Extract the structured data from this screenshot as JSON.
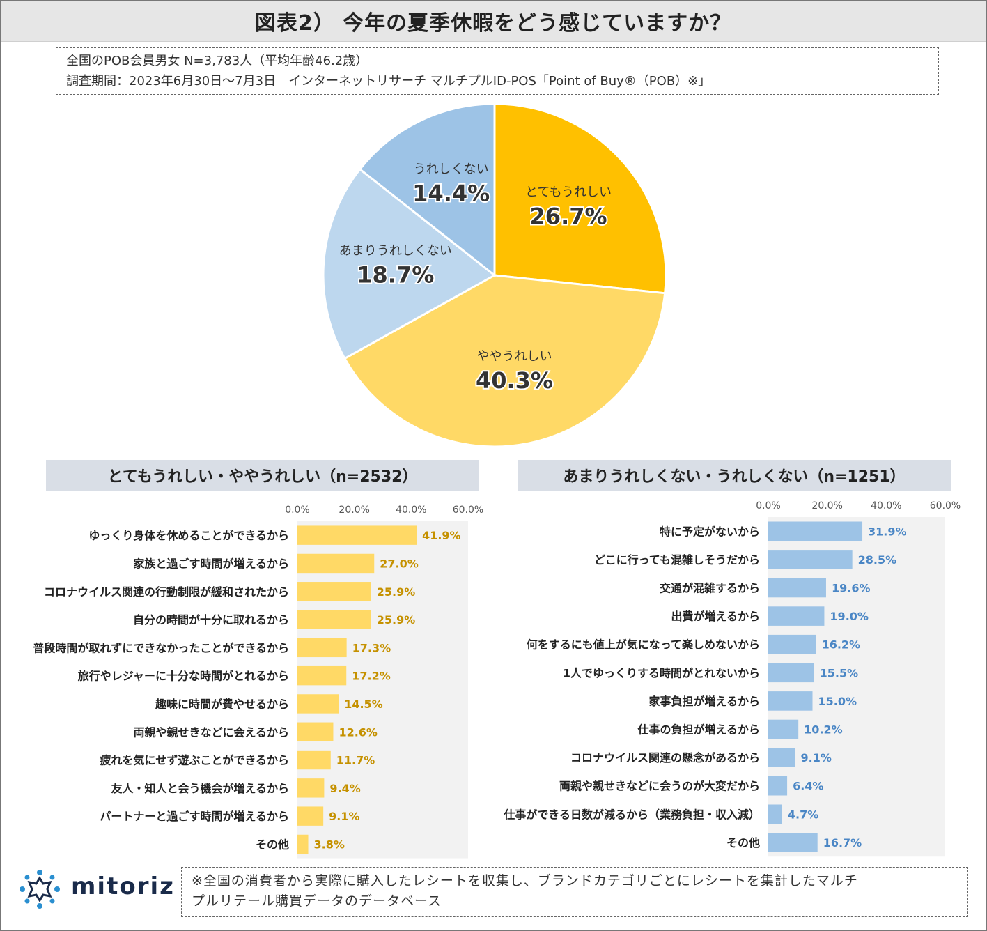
{
  "title": "図表2） 今年の夏季休暇をどう感じていますか？",
  "info": {
    "line1": "全国のPOB会員男女 N=3,783人（平均年齢46.2歳）",
    "line2": "調査期間：2023年6月30日～7月3日　インターネットリサーチ マルチプルID-POS「Point of Buy®（POB）※」"
  },
  "colors": {
    "very_happy": "#ffc000",
    "somewhat_happy": "#ffd966",
    "not_very_happy": "#bdd7ee",
    "not_happy": "#9dc3e6",
    "bar_left": "#ffd966",
    "bar_right": "#9dc3e6",
    "label_left": "#c59100",
    "label_right": "#4a86c5"
  },
  "chart_data": [
    {
      "type": "pie",
      "slices": [
        {
          "label": "とてもうれしい",
          "value": 26.7,
          "display": "26.7%"
        },
        {
          "label": "ややうれしい",
          "value": 40.3,
          "display": "40.3%"
        },
        {
          "label": "あまりうれしくない",
          "value": 18.7,
          "display": "18.7%"
        },
        {
          "label": "うれしくない",
          "value": 14.4,
          "display": "14.4%"
        }
      ]
    },
    {
      "type": "bar",
      "title": "とてもうれしい・ややうれしい（n=2532）",
      "orientation": "horizontal",
      "xlim": [
        0,
        60
      ],
      "ticks": [
        "0.0%",
        "20.0%",
        "40.0%",
        "60.0%"
      ],
      "categories": [
        "ゆっくり身体を休めることができるから",
        "家族と過ごす時間が増えるから",
        "コロナウイルス関連の行動制限が緩和されたから",
        "自分の時間が十分に取れるから",
        "普段時間が取れずにできなかったことができるから",
        "旅行やレジャーに十分な時間がとれるから",
        "趣味に時間が費やせるから",
        "両親や親せきなどに会えるから",
        "疲れを気にせず遊ぶことができるから",
        "友人・知人と会う機会が増えるから",
        "パートナーと過ごす時間が増えるから",
        "その他"
      ],
      "values": [
        41.9,
        27.0,
        25.9,
        25.9,
        17.3,
        17.2,
        14.5,
        12.6,
        11.7,
        9.4,
        9.1,
        3.8
      ],
      "labels": [
        "41.9%",
        "27.0%",
        "25.9%",
        "25.9%",
        "17.3%",
        "17.2%",
        "14.5%",
        "12.6%",
        "11.7%",
        "9.4%",
        "9.1%",
        "3.8%"
      ]
    },
    {
      "type": "bar",
      "title": "あまりうれしくない・うれしくない（n=1251）",
      "orientation": "horizontal",
      "xlim": [
        0,
        60
      ],
      "ticks": [
        "0.0%",
        "20.0%",
        "40.0%",
        "60.0%"
      ],
      "categories": [
        "特に予定がないから",
        "どこに行っても混雑しそうだから",
        "交通が混雑するから",
        "出費が増えるから",
        "何をするにも値上が気になって楽しめないから",
        "1人でゆっくりする時間がとれないから",
        "家事負担が増えるから",
        "仕事の負担が増えるから",
        "コロナウイルス関連の懸念があるから",
        "両親や親せきなどに会うのが大変だから",
        "仕事ができる日数が減るから（業務負担・収入減）",
        "その他"
      ],
      "values": [
        31.9,
        28.5,
        19.6,
        19.0,
        16.2,
        15.5,
        15.0,
        10.2,
        9.1,
        6.4,
        4.7,
        16.7
      ],
      "labels": [
        "31.9%",
        "28.5%",
        "19.6%",
        "19.0%",
        "16.2%",
        "15.5%",
        "15.0%",
        "10.2%",
        "9.1%",
        "6.4%",
        "4.7%",
        "16.7%"
      ]
    }
  ],
  "footer": {
    "line1": "※全国の消費者から実際に購入したレシートを収集し、ブランドカテゴリごとにレシートを集計したマルチ",
    "line2": "プルリテール購買データのデータベース"
  },
  "logo": {
    "text": "mitoriz",
    "icon": "mitoriz-logo-icon"
  }
}
